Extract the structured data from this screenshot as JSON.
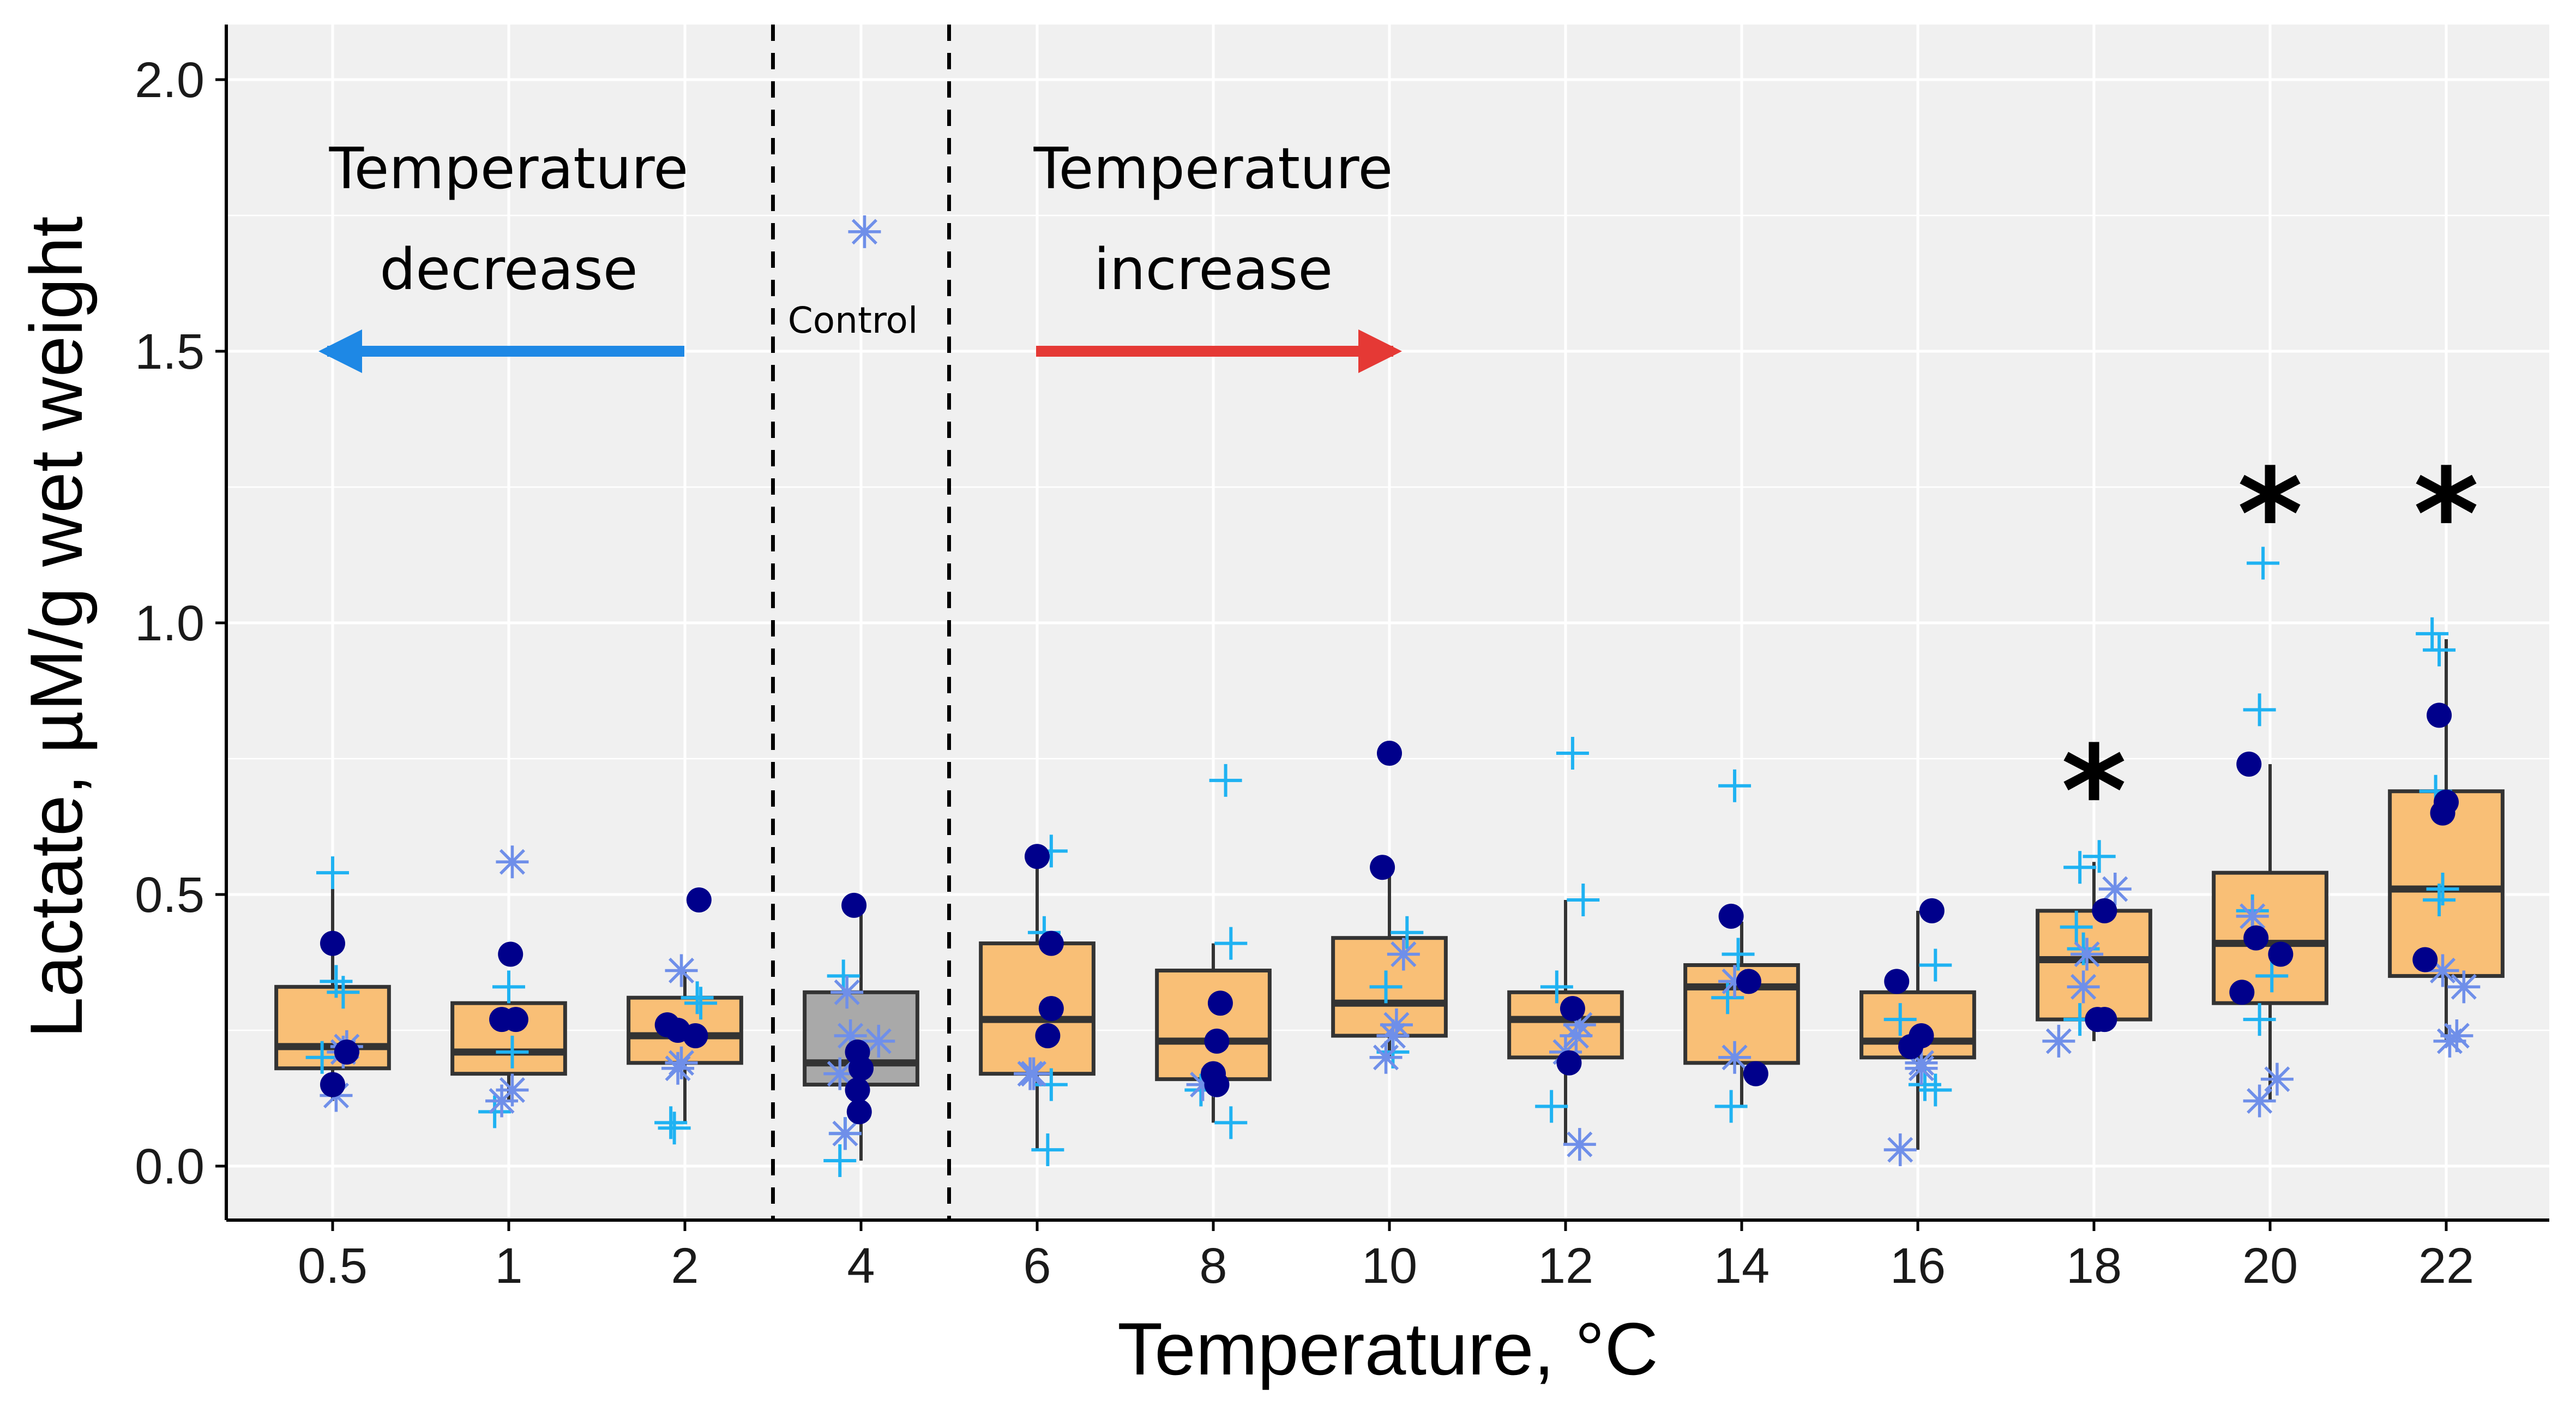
{
  "chart_data": {
    "type": "box",
    "xlabel": "Temperature, °C",
    "ylabel": "Lactate, µM/g wet weight",
    "categories": [
      "0.5",
      "1",
      "2",
      "4",
      "6",
      "8",
      "10",
      "12",
      "14",
      "16",
      "18",
      "20",
      "22"
    ],
    "yticks": [
      "0.0",
      "0.5",
      "1.0",
      "1.5",
      "2.0"
    ],
    "ylim": [
      -0.1,
      2.1
    ],
    "grid": true,
    "colors": {
      "treatment_box": "#f9bf76",
      "control_box": "#a9a9a9",
      "panel_bg": "#f0f0f0",
      "grid": "#ffffff",
      "plus_marker": "#1fb2f2",
      "star_marker": "#6f8fe9",
      "dot_marker": "#00008b",
      "decrease_arrow": "#1e88e5",
      "increase_arrow": "#e53935"
    },
    "boxes": [
      {
        "category": "0.5",
        "min": 0.12,
        "q1": 0.18,
        "median": 0.22,
        "q3": 0.33,
        "max": 0.53,
        "role": "treatment"
      },
      {
        "category": "1",
        "min": 0.12,
        "q1": 0.17,
        "median": 0.21,
        "q3": 0.3,
        "max": 0.3,
        "role": "treatment"
      },
      {
        "category": "2",
        "min": 0.08,
        "q1": 0.19,
        "median": 0.24,
        "q3": 0.31,
        "max": 0.36,
        "role": "treatment"
      },
      {
        "category": "4",
        "min": 0.01,
        "q1": 0.15,
        "median": 0.19,
        "q3": 0.32,
        "max": 0.48,
        "role": "control"
      },
      {
        "category": "6",
        "min": 0.03,
        "q1": 0.17,
        "median": 0.27,
        "q3": 0.41,
        "max": 0.57,
        "role": "treatment"
      },
      {
        "category": "8",
        "min": 0.08,
        "q1": 0.16,
        "median": 0.23,
        "q3": 0.36,
        "max": 0.41,
        "role": "treatment"
      },
      {
        "category": "10",
        "min": 0.2,
        "q1": 0.24,
        "median": 0.3,
        "q3": 0.42,
        "max": 0.55,
        "role": "treatment"
      },
      {
        "category": "12",
        "min": 0.04,
        "q1": 0.2,
        "median": 0.27,
        "q3": 0.32,
        "max": 0.49,
        "role": "treatment"
      },
      {
        "category": "14",
        "min": 0.11,
        "q1": 0.19,
        "median": 0.33,
        "q3": 0.37,
        "max": 0.45,
        "role": "treatment"
      },
      {
        "category": "16",
        "min": 0.03,
        "q1": 0.2,
        "median": 0.23,
        "q3": 0.32,
        "max": 0.47,
        "role": "treatment"
      },
      {
        "category": "18",
        "min": 0.23,
        "q1": 0.27,
        "median": 0.38,
        "q3": 0.47,
        "max": 0.56,
        "role": "treatment"
      },
      {
        "category": "20",
        "min": 0.12,
        "q1": 0.3,
        "median": 0.41,
        "q3": 0.54,
        "max": 0.74,
        "role": "treatment"
      },
      {
        "category": "22",
        "min": 0.23,
        "q1": 0.35,
        "median": 0.51,
        "q3": 0.69,
        "max": 0.97,
        "role": "treatment"
      }
    ],
    "series": [
      {
        "marker": "plus",
        "points": [
          {
            "category": "0.5",
            "dx": 0.0,
            "y": 0.54
          },
          {
            "category": "0.5",
            "dx": 0.02,
            "y": 0.34
          },
          {
            "category": "0.5",
            "dx": 0.06,
            "y": 0.32
          },
          {
            "category": "0.5",
            "dx": -0.06,
            "y": 0.2
          },
          {
            "category": "1",
            "dx": 0.0,
            "y": 0.33
          },
          {
            "category": "1",
            "dx": 0.02,
            "y": 0.21
          },
          {
            "category": "1",
            "dx": -0.08,
            "y": 0.1
          },
          {
            "category": "2",
            "dx": 0.07,
            "y": 0.31
          },
          {
            "category": "2",
            "dx": 0.09,
            "y": 0.3
          },
          {
            "category": "2",
            "dx": -0.08,
            "y": 0.08
          },
          {
            "category": "2",
            "dx": -0.06,
            "y": 0.07
          },
          {
            "category": "4",
            "dx": -0.1,
            "y": 0.35
          },
          {
            "category": "4",
            "dx": -0.09,
            "y": 0.06
          },
          {
            "category": "4",
            "dx": -0.12,
            "y": 0.01
          },
          {
            "category": "6",
            "dx": 0.08,
            "y": 0.58
          },
          {
            "category": "6",
            "dx": 0.04,
            "y": 0.43
          },
          {
            "category": "6",
            "dx": 0.08,
            "y": 0.15
          },
          {
            "category": "6",
            "dx": 0.06,
            "y": 0.03
          },
          {
            "category": "8",
            "dx": 0.07,
            "y": 0.71
          },
          {
            "category": "8",
            "dx": 0.1,
            "y": 0.41
          },
          {
            "category": "8",
            "dx": -0.07,
            "y": 0.14
          },
          {
            "category": "8",
            "dx": 0.1,
            "y": 0.08
          },
          {
            "category": "10",
            "dx": 0.1,
            "y": 0.43
          },
          {
            "category": "10",
            "dx": -0.02,
            "y": 0.33
          },
          {
            "category": "10",
            "dx": 0.02,
            "y": 0.21
          },
          {
            "category": "12",
            "dx": 0.04,
            "y": 0.76
          },
          {
            "category": "12",
            "dx": 0.1,
            "y": 0.49
          },
          {
            "category": "12",
            "dx": -0.05,
            "y": 0.33
          },
          {
            "category": "12",
            "dx": -0.08,
            "y": 0.11
          },
          {
            "category": "14",
            "dx": -0.04,
            "y": 0.7
          },
          {
            "category": "14",
            "dx": -0.02,
            "y": 0.39
          },
          {
            "category": "14",
            "dx": -0.08,
            "y": 0.31
          },
          {
            "category": "14",
            "dx": -0.06,
            "y": 0.11
          },
          {
            "category": "16",
            "dx": 0.1,
            "y": 0.37
          },
          {
            "category": "16",
            "dx": -0.1,
            "y": 0.27
          },
          {
            "category": "16",
            "dx": 0.04,
            "y": 0.15
          },
          {
            "category": "16",
            "dx": 0.1,
            "y": 0.14
          },
          {
            "category": "18",
            "dx": -0.08,
            "y": 0.55
          },
          {
            "category": "18",
            "dx": 0.03,
            "y": 0.57
          },
          {
            "category": "18",
            "dx": -0.1,
            "y": 0.44
          },
          {
            "category": "18",
            "dx": -0.06,
            "y": 0.4
          },
          {
            "category": "18",
            "dx": -0.08,
            "y": 0.27
          },
          {
            "category": "20",
            "dx": -0.04,
            "y": 1.11
          },
          {
            "category": "20",
            "dx": -0.06,
            "y": 0.84
          },
          {
            "category": "20",
            "dx": -0.1,
            "y": 0.47
          },
          {
            "category": "20",
            "dx": 0.01,
            "y": 0.35
          },
          {
            "category": "20",
            "dx": -0.06,
            "y": 0.27
          },
          {
            "category": "22",
            "dx": -0.08,
            "y": 0.98
          },
          {
            "category": "22",
            "dx": -0.04,
            "y": 0.95
          },
          {
            "category": "22",
            "dx": -0.06,
            "y": 0.69
          },
          {
            "category": "22",
            "dx": -0.02,
            "y": 0.51
          },
          {
            "category": "22",
            "dx": -0.04,
            "y": 0.49
          }
        ]
      },
      {
        "marker": "star",
        "points": [
          {
            "category": "0.5",
            "dx": 0.08,
            "y": 0.22
          },
          {
            "category": "0.5",
            "dx": 0.06,
            "y": 0.21
          },
          {
            "category": "0.5",
            "dx": 0.02,
            "y": 0.13
          },
          {
            "category": "1",
            "dx": 0.02,
            "y": 0.56
          },
          {
            "category": "1",
            "dx": 0.02,
            "y": 0.14
          },
          {
            "category": "1",
            "dx": -0.04,
            "y": 0.12
          },
          {
            "category": "2",
            "dx": -0.02,
            "y": 0.36
          },
          {
            "category": "2",
            "dx": -0.02,
            "y": 0.19
          },
          {
            "category": "2",
            "dx": -0.04,
            "y": 0.18
          },
          {
            "category": "4",
            "dx": 0.02,
            "y": 1.72
          },
          {
            "category": "4",
            "dx": -0.08,
            "y": 0.32
          },
          {
            "category": "4",
            "dx": -0.06,
            "y": 0.24
          },
          {
            "category": "4",
            "dx": 0.1,
            "y": 0.23
          },
          {
            "category": "4",
            "dx": -0.12,
            "y": 0.17
          },
          {
            "category": "4",
            "dx": -0.09,
            "y": 0.06
          },
          {
            "category": "6",
            "dx": -0.04,
            "y": 0.17
          },
          {
            "category": "6",
            "dx": -0.02,
            "y": 0.17
          },
          {
            "category": "8",
            "dx": -0.06,
            "y": 0.15
          },
          {
            "category": "10",
            "dx": 0.08,
            "y": 0.39
          },
          {
            "category": "10",
            "dx": 0.04,
            "y": 0.26
          },
          {
            "category": "10",
            "dx": 0.02,
            "y": 0.24
          },
          {
            "category": "10",
            "dx": -0.02,
            "y": 0.2
          },
          {
            "category": "12",
            "dx": 0.08,
            "y": 0.26
          },
          {
            "category": "12",
            "dx": 0.06,
            "y": 0.24
          },
          {
            "category": "12",
            "dx": 0.0,
            "y": 0.21
          },
          {
            "category": "12",
            "dx": 0.08,
            "y": 0.04
          },
          {
            "category": "14",
            "dx": -0.04,
            "y": 0.34
          },
          {
            "category": "14",
            "dx": -0.04,
            "y": 0.2
          },
          {
            "category": "16",
            "dx": 0.02,
            "y": 0.19
          },
          {
            "category": "16",
            "dx": 0.02,
            "y": 0.18
          },
          {
            "category": "16",
            "dx": -0.1,
            "y": 0.03
          },
          {
            "category": "18",
            "dx": 0.12,
            "y": 0.51
          },
          {
            "category": "18",
            "dx": -0.04,
            "y": 0.39
          },
          {
            "category": "18",
            "dx": -0.06,
            "y": 0.33
          },
          {
            "category": "18",
            "dx": -0.2,
            "y": 0.23
          },
          {
            "category": "20",
            "dx": -0.1,
            "y": 0.46
          },
          {
            "category": "20",
            "dx": 0.04,
            "y": 0.16
          },
          {
            "category": "20",
            "dx": -0.06,
            "y": 0.12
          },
          {
            "category": "22",
            "dx": -0.02,
            "y": 0.36
          },
          {
            "category": "22",
            "dx": 0.1,
            "y": 0.33
          },
          {
            "category": "22",
            "dx": 0.06,
            "y": 0.24
          },
          {
            "category": "22",
            "dx": 0.02,
            "y": 0.23
          }
        ]
      },
      {
        "marker": "dot",
        "points": [
          {
            "category": "0.5",
            "dx": 0.0,
            "y": 0.41
          },
          {
            "category": "0.5",
            "dx": 0.08,
            "y": 0.21
          },
          {
            "category": "0.5",
            "dx": 0.0,
            "y": 0.15
          },
          {
            "category": "1",
            "dx": 0.01,
            "y": 0.39
          },
          {
            "category": "1",
            "dx": -0.04,
            "y": 0.27
          },
          {
            "category": "1",
            "dx": 0.04,
            "y": 0.27
          },
          {
            "category": "2",
            "dx": 0.08,
            "y": 0.49
          },
          {
            "category": "2",
            "dx": -0.1,
            "y": 0.26
          },
          {
            "category": "2",
            "dx": -0.04,
            "y": 0.25
          },
          {
            "category": "2",
            "dx": 0.06,
            "y": 0.24
          },
          {
            "category": "4",
            "dx": -0.04,
            "y": 0.48
          },
          {
            "category": "4",
            "dx": -0.02,
            "y": 0.21
          },
          {
            "category": "4",
            "dx": 0.0,
            "y": 0.18
          },
          {
            "category": "4",
            "dx": -0.02,
            "y": 0.14
          },
          {
            "category": "4",
            "dx": -0.01,
            "y": 0.1
          },
          {
            "category": "6",
            "dx": 0.0,
            "y": 0.57
          },
          {
            "category": "6",
            "dx": 0.08,
            "y": 0.41
          },
          {
            "category": "6",
            "dx": 0.08,
            "y": 0.29
          },
          {
            "category": "6",
            "dx": 0.06,
            "y": 0.24
          },
          {
            "category": "8",
            "dx": 0.04,
            "y": 0.3
          },
          {
            "category": "8",
            "dx": 0.02,
            "y": 0.23
          },
          {
            "category": "8",
            "dx": 0.0,
            "y": 0.17
          },
          {
            "category": "8",
            "dx": 0.02,
            "y": 0.15
          },
          {
            "category": "10",
            "dx": 0.0,
            "y": 0.76
          },
          {
            "category": "10",
            "dx": -0.04,
            "y": 0.55
          },
          {
            "category": "12",
            "dx": 0.04,
            "y": 0.29
          },
          {
            "category": "12",
            "dx": 0.02,
            "y": 0.19
          },
          {
            "category": "14",
            "dx": -0.06,
            "y": 0.46
          },
          {
            "category": "14",
            "dx": 0.04,
            "y": 0.34
          },
          {
            "category": "14",
            "dx": 0.08,
            "y": 0.17
          },
          {
            "category": "16",
            "dx": -0.12,
            "y": 0.34
          },
          {
            "category": "16",
            "dx": 0.08,
            "y": 0.47
          },
          {
            "category": "16",
            "dx": 0.02,
            "y": 0.24
          },
          {
            "category": "16",
            "dx": -0.04,
            "y": 0.22
          },
          {
            "category": "18",
            "dx": 0.06,
            "y": 0.47
          },
          {
            "category": "18",
            "dx": 0.02,
            "y": 0.27
          },
          {
            "category": "18",
            "dx": 0.06,
            "y": 0.27
          },
          {
            "category": "20",
            "dx": -0.12,
            "y": 0.74
          },
          {
            "category": "20",
            "dx": -0.08,
            "y": 0.42
          },
          {
            "category": "20",
            "dx": 0.06,
            "y": 0.39
          },
          {
            "category": "20",
            "dx": -0.16,
            "y": 0.32
          },
          {
            "category": "22",
            "dx": -0.04,
            "y": 0.83
          },
          {
            "category": "22",
            "dx": 0.0,
            "y": 0.67
          },
          {
            "category": "22",
            "dx": -0.02,
            "y": 0.65
          },
          {
            "category": "22",
            "dx": -0.12,
            "y": 0.38
          }
        ]
      }
    ],
    "significance": [
      {
        "category": "18",
        "label": "*",
        "y": 0.76
      },
      {
        "category": "20",
        "label": "*",
        "y": 1.27
      },
      {
        "category": "22",
        "label": "*",
        "y": 1.27
      }
    ],
    "annotations": {
      "decrease": {
        "line1": "Temperature",
        "line2": "decrease",
        "direction": "left"
      },
      "increase": {
        "line1": "Temperature",
        "line2": "increase",
        "direction": "right"
      },
      "control": "Control"
    },
    "separators_between": [
      [
        "2",
        "4"
      ],
      [
        "4",
        "6"
      ]
    ]
  }
}
